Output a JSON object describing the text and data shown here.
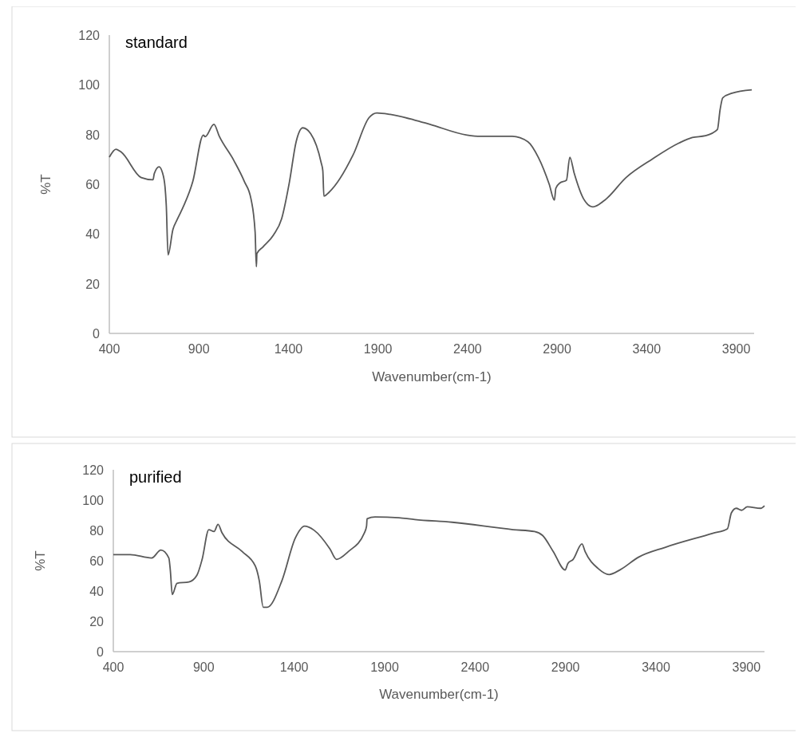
{
  "chart_data": [
    {
      "type": "line",
      "title": "standard",
      "xlabel": "Wavenumber(cm-1)",
      "ylabel": "%T",
      "xlim": [
        400,
        4000
      ],
      "ylim": [
        0,
        120
      ],
      "xticks": [
        400,
        900,
        1400,
        1900,
        2400,
        2900,
        3400,
        3900
      ],
      "yticks": [
        0,
        20,
        40,
        60,
        80,
        100,
        120
      ],
      "x": [
        400,
        437,
        467,
        578,
        644,
        651,
        678,
        696,
        711,
        718,
        728,
        755,
        777,
        799,
        866,
        925,
        935,
        984,
        1014,
        1095,
        1154,
        1191,
        1214,
        1221,
        1224,
        1258,
        1317,
        1362,
        1406,
        1443,
        1480,
        1524,
        1583,
        1592,
        1598,
        1627,
        1761,
        1850,
        1894,
        1968,
        2101,
        2190,
        2397,
        2471,
        2649,
        2737,
        2796,
        2856,
        2885,
        2893,
        2915,
        2952,
        2971,
        2996,
        3048,
        3100,
        3166,
        3285,
        3433,
        3581,
        3655,
        3728,
        3795,
        3810,
        3825,
        3876,
        3987
      ],
      "series": [
        {
          "color": "#595959",
          "values": [
            70.9,
            74.1,
            72.9,
            62.7,
            61.8,
            64.3,
            67.0,
            64.8,
            58.9,
            51.4,
            31.6,
            41.8,
            45.5,
            48.8,
            61.1,
            79.8,
            79.1,
            84.1,
            79.3,
            69.6,
            61.1,
            54.1,
            40.7,
            26.8,
            32.1,
            34.8,
            39.6,
            46.1,
            61.1,
            77.1,
            82.7,
            80.4,
            68.6,
            65.4,
            55.2,
            56.8,
            71.8,
            86.8,
            88.7,
            88.1,
            85.9,
            84.1,
            79.8,
            79.3,
            79.3,
            77.1,
            70.7,
            60.0,
            53.6,
            58.4,
            60.5,
            61.6,
            70.9,
            64.3,
            54.1,
            50.9,
            53.6,
            62.7,
            70.2,
            76.6,
            78.8,
            79.5,
            82.0,
            90.0,
            94.8,
            96.6,
            98.0
          ]
        }
      ]
    },
    {
      "type": "line",
      "title": "purified",
      "xlabel": "Wavenumber(cm-1)",
      "ylabel": "%T",
      "xlim": [
        400,
        4000
      ],
      "ylim": [
        0,
        120
      ],
      "xticks": [
        400,
        900,
        1400,
        1900,
        2400,
        2900,
        3400,
        3900
      ],
      "yticks": [
        0,
        20,
        40,
        60,
        80,
        100,
        120
      ],
      "x": [
        400,
        494,
        612,
        663,
        707,
        715,
        726,
        752,
        818,
        862,
        891,
        928,
        957,
        979,
        1001,
        1112,
        1185,
        1207,
        1229,
        1251,
        1332,
        1406,
        1457,
        1509,
        1597,
        1634,
        1700,
        1788,
        1800,
        1803,
        1847,
        1979,
        2067,
        2273,
        2611,
        2729,
        2773,
        2832,
        2898,
        2913,
        2942,
        2991,
        3008,
        3082,
        3141,
        3200,
        3303,
        3450,
        3714,
        3795,
        3817,
        3844,
        3873,
        3905,
        3979,
        4000
      ],
      "series": [
        {
          "color": "#595959",
          "values": [
            64.0,
            64.0,
            61.8,
            67.0,
            61.8,
            53.9,
            37.7,
            45.1,
            46.0,
            50.4,
            60.9,
            80.5,
            79.3,
            84.0,
            78.4,
            66.1,
            56.5,
            46.8,
            29.3,
            29.3,
            46.8,
            74.9,
            82.8,
            80.2,
            67.9,
            60.9,
            66.1,
            78.4,
            82.8,
            87.7,
            88.9,
            88.4,
            87.2,
            85.4,
            80.5,
            79.3,
            76.7,
            66.1,
            53.9,
            58.2,
            60.9,
            71.1,
            66.1,
            54.7,
            50.9,
            53.9,
            62.3,
            68.8,
            78.1,
            81.1,
            91.6,
            94.6,
            93.3,
            95.6,
            94.6,
            96.3
          ]
        }
      ]
    }
  ]
}
